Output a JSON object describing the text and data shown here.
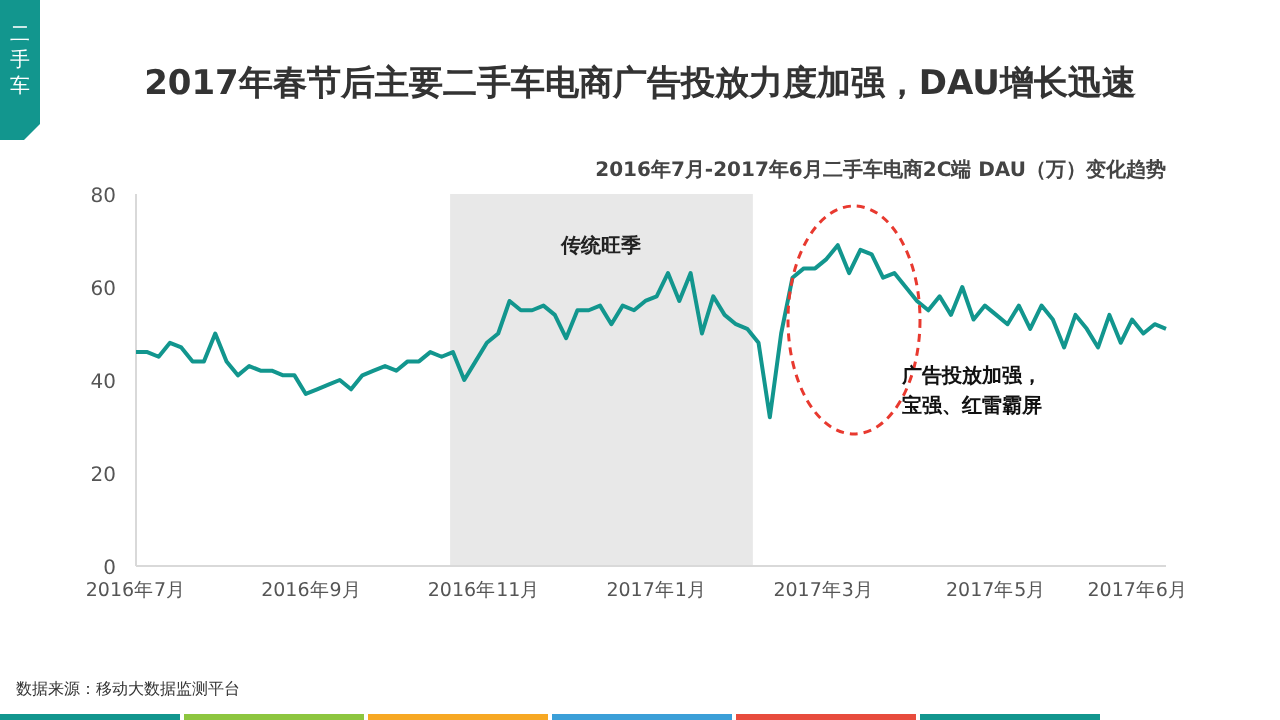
{
  "chart_data": {
    "type": "line",
    "title": "2017年春节后主要二手车电商广告投放力度加强，DAU增长迅速",
    "subtitle": "2016年7月-2017年6月二手车电商2C端 DAU（万）变化趋势",
    "annotations": [
      "二手车",
      "广告投放加强，宝强、红雷霸屏",
      "数据来源：移动大数据监测平台"
    ],
    "x": [
      "2016-07-01",
      "2016-07-05",
      "2016-07-09",
      "2016-07-13",
      "2016-07-17",
      "2016-07-21",
      "2016-07-25",
      "2016-07-29",
      "2016-08-02",
      "2016-08-06",
      "2016-08-10",
      "2016-08-14",
      "2016-08-18",
      "2016-08-22",
      "2016-08-26",
      "2016-08-30",
      "2016-09-03",
      "2016-09-07",
      "2016-09-11",
      "2016-09-15",
      "2016-09-19",
      "2016-09-23",
      "2016-09-27",
      "2016-10-01",
      "2016-10-05",
      "2016-10-09",
      "2016-10-13",
      "2016-10-17",
      "2016-10-21",
      "2016-10-25",
      "2016-10-29",
      "2016-11-02",
      "2016-11-06",
      "2016-11-10",
      "2016-11-14",
      "2016-11-18",
      "2016-11-22",
      "2016-11-26",
      "2016-11-30",
      "2016-12-04",
      "2016-12-08",
      "2016-12-12",
      "2016-12-16",
      "2016-12-20",
      "2016-12-24",
      "2016-12-28",
      "2017-01-01",
      "2017-01-05",
      "2017-01-09",
      "2017-01-13",
      "2017-01-17",
      "2017-01-21",
      "2017-01-25",
      "2017-01-29",
      "2017-02-02",
      "2017-02-06",
      "2017-02-10",
      "2017-02-14",
      "2017-02-18",
      "2017-02-22",
      "2017-02-26",
      "2017-03-02",
      "2017-03-06",
      "2017-03-10",
      "2017-03-14",
      "2017-03-18",
      "2017-03-22",
      "2017-03-26",
      "2017-03-30",
      "2017-04-03",
      "2017-04-07",
      "2017-04-11",
      "2017-04-15",
      "2017-04-19",
      "2017-04-23",
      "2017-04-27",
      "2017-05-01",
      "2017-05-05",
      "2017-05-09",
      "2017-05-13",
      "2017-05-17",
      "2017-05-21",
      "2017-05-25",
      "2017-05-29",
      "2017-06-02",
      "2017-06-06",
      "2017-06-10",
      "2017-06-14",
      "2017-06-18",
      "2017-06-22",
      "2017-06-26",
      "2017-06-30"
    ],
    "series": [
      {
        "color": "#12968e",
        "values": [
          46,
          46,
          45,
          48,
          47,
          44,
          44,
          50,
          44,
          41,
          43,
          42,
          42,
          41,
          41,
          37,
          38,
          39,
          40,
          38,
          41,
          42,
          43,
          42,
          44,
          44,
          46,
          45,
          46,
          40,
          44,
          48,
          50,
          57,
          55,
          55,
          56,
          54,
          49,
          55,
          55,
          56,
          52,
          56,
          55,
          57,
          58,
          63,
          57,
          63,
          50,
          58,
          54,
          52,
          51,
          48,
          32,
          50,
          62,
          64,
          64,
          66,
          69,
          63,
          68,
          67,
          62,
          63,
          60,
          57,
          55,
          58,
          54,
          60,
          53,
          56,
          54,
          52,
          56,
          51,
          56,
          53,
          47,
          54,
          51,
          47,
          54,
          48,
          53,
          50,
          52,
          51
        ]
      }
    ],
    "xlim": [
      "2016-07-01",
      "2017-06-30"
    ],
    "xticks": [
      {
        "value": "2016-07-01",
        "label": "2016年7月"
      },
      {
        "value": "2016-09-01",
        "label": "2016年9月"
      },
      {
        "value": "2016-11-01",
        "label": "2016年11月"
      },
      {
        "value": "2017-01-01",
        "label": "2017年1月"
      },
      {
        "value": "2017-03-01",
        "label": "2017年3月"
      },
      {
        "value": "2017-05-01",
        "label": "2017年5月"
      },
      {
        "value": "2017-06-20",
        "label": "2017年6月"
      }
    ],
    "ylim": [
      0,
      80
    ],
    "yticks": [
      0,
      20,
      40,
      60,
      80
    ],
    "bands": [
      {
        "axis": "x",
        "from": "2016-10-20",
        "to": "2017-02-04",
        "label": "传统旺季",
        "color": "#e8e8e8"
      }
    ],
    "grid": false,
    "marker": "none",
    "line_style": "solid"
  }
}
